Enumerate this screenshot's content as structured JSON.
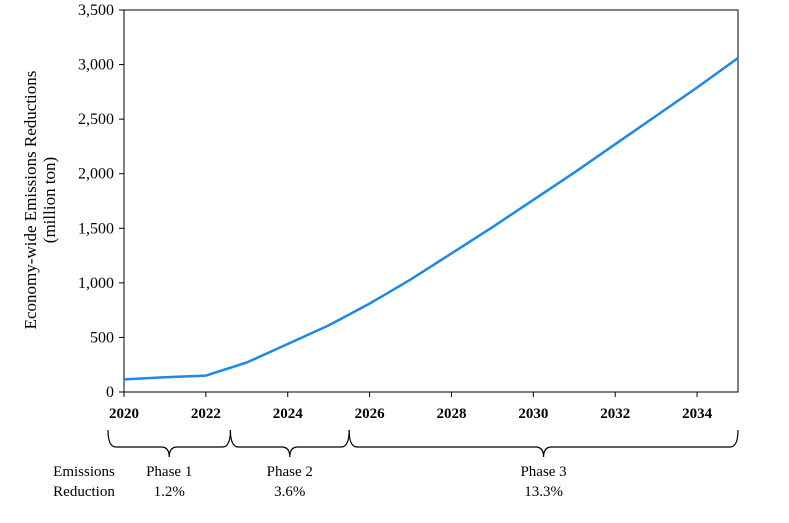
{
  "chart_data": {
    "type": "line",
    "ylabel_line1": "Economy-wide Emissions Reductions",
    "ylabel_line2": "(million ton)",
    "xlim": [
      2020,
      2035
    ],
    "ylim": [
      0,
      3500
    ],
    "x_ticks": [
      "2020",
      "2022",
      "2024",
      "2026",
      "2028",
      "2030",
      "2032",
      "2034"
    ],
    "y_ticks": [
      "0",
      "500",
      "1,000",
      "1,500",
      "2,000",
      "2,500",
      "3,000",
      "3,500"
    ],
    "series": [
      {
        "color": "#1e88e5",
        "x": [
          2020,
          2021,
          2022,
          2023,
          2024,
          2025,
          2026,
          2027,
          2028,
          2029,
          2030,
          2031,
          2032,
          2033,
          2034,
          2035
        ],
        "y": [
          115,
          135,
          150,
          270,
          440,
          610,
          810,
          1030,
          1270,
          1510,
          1760,
          2010,
          2270,
          2530,
          2790,
          3060
        ]
      }
    ],
    "phase_row_label_line1": "Emissions",
    "phase_row_label_line2": "Reduction",
    "phases": [
      {
        "label": "Phase 1",
        "value": "1.2%",
        "start": 2020,
        "end": 2022.6
      },
      {
        "label": "Phase 2",
        "value": "3.6%",
        "start": 2022.6,
        "end": 2025.5
      },
      {
        "label": "Phase 3",
        "value": "13.3%",
        "start": 2025.5,
        "end": 2035
      }
    ],
    "grid": false,
    "legend": "none"
  }
}
